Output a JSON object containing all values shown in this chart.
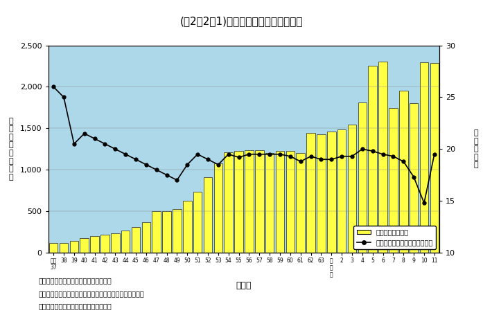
{
  "title": "(図2－2－1)　国土保全事業予算の推移",
  "xlabel": "年　度",
  "ylabel_left": "予\n算\n額\n（\n十\n億\n円\n）",
  "ylabel_right": "割\n合\n（\n％\n）",
  "cat_labels": [
    "昭和\n37",
    "38",
    "39",
    "40",
    "41",
    "42",
    "43",
    "44",
    "45",
    "46",
    "47",
    "48",
    "49",
    "50",
    "51",
    "52",
    "53",
    "54",
    "55",
    "56",
    "57",
    "58",
    "59",
    "60",
    "61",
    "62",
    "63",
    "平\n成\n元",
    "2",
    "3",
    "4",
    "5",
    "6",
    "7",
    "8",
    "9",
    "10",
    "11"
  ],
  "bar_values": [
    115,
    120,
    145,
    175,
    200,
    215,
    235,
    265,
    305,
    370,
    500,
    500,
    525,
    625,
    735,
    910,
    1080,
    1210,
    1225,
    1235,
    1235,
    1205,
    1225,
    1225,
    1205,
    1445,
    1425,
    1465,
    1485,
    1545,
    1810,
    2255,
    2305,
    1745,
    1955,
    1805,
    2295,
    2285
  ],
  "line_values": [
    26.0,
    25.0,
    20.5,
    21.5,
    21.0,
    20.5,
    20.0,
    19.5,
    19.0,
    18.5,
    18.0,
    17.5,
    17.0,
    18.5,
    19.5,
    19.0,
    18.5,
    19.5,
    19.2,
    19.5,
    19.5,
    19.5,
    19.5,
    19.3,
    18.8,
    19.3,
    19.0,
    19.0,
    19.3,
    19.3,
    20.0,
    19.8,
    19.5,
    19.3,
    18.8,
    17.3,
    14.8,
    19.5
  ],
  "ylim_left": [
    0,
    2500
  ],
  "ylim_right": [
    10,
    30
  ],
  "yticks_left": [
    0,
    500,
    1000,
    1500,
    2000,
    2500
  ],
  "yticks_right": [
    10,
    15,
    20,
    25,
    30
  ],
  "bar_color": "#FFFF44",
  "bar_edge_color": "#222222",
  "line_color": "#000000",
  "bg_color": "#ACD8EA",
  "legend1": "国土保全事業予算",
  "legend2": "一般公共事業予算に占める割合",
  "note1": "注）１．予算額は補正後の国費である。",
  "note2": "　　２．国土保全事業予算は下水道事業関係予算を除く。",
  "note3": "資料：各省庁資料をもとに内閣府作成。"
}
